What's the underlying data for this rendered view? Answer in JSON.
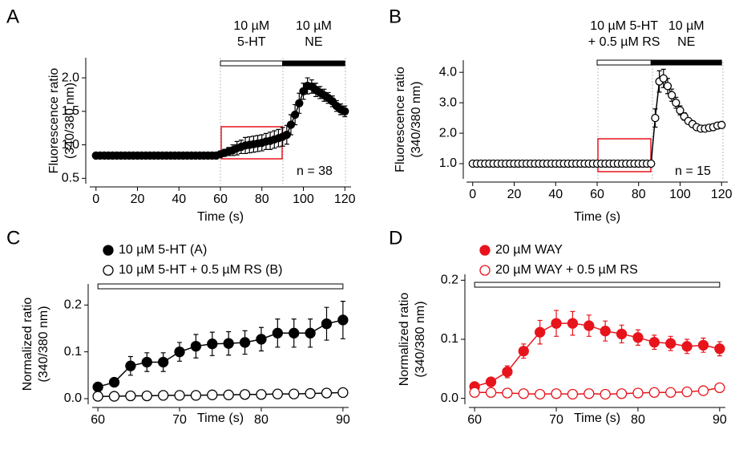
{
  "chart_data": [
    {
      "type": "line",
      "panel": "A",
      "xlabel": "Time (s)",
      "ylabel": [
        "Fluorescence ratio",
        "(340/380 nm)"
      ],
      "xlim": [
        -3,
        123
      ],
      "xticks": [
        0,
        20,
        40,
        60,
        80,
        100,
        120
      ],
      "ylim": [
        0.42,
        2.3
      ],
      "yticks": [
        {
          "value": 0.5,
          "label": "0.5"
        },
        {
          "value": 1,
          "label": "1.0"
        },
        {
          "value": 1.5,
          "label": "1.5"
        },
        {
          "value": 2,
          "label": "2.0"
        }
      ],
      "stimuli": [
        {
          "start": 60,
          "end": 90,
          "color": "#ffffff",
          "label": [
            "10 µM",
            "5-HT"
          ]
        },
        {
          "start": 90,
          "end": 120,
          "color": "#000000",
          "label": [
            "10 µM",
            "NE"
          ]
        }
      ],
      "annotations": [
        "n = 38"
      ],
      "series": [
        {
          "name": null,
          "color": "#000000",
          "filled": true,
          "x": [
            0,
            2,
            4,
            6,
            8,
            10,
            12,
            14,
            16,
            18,
            20,
            22,
            24,
            26,
            28,
            30,
            32,
            34,
            36,
            38,
            40,
            42,
            44,
            46,
            48,
            50,
            52,
            54,
            56,
            58,
            60,
            62,
            64,
            66,
            68,
            70,
            72,
            74,
            76,
            78,
            80,
            82,
            84,
            86,
            88,
            90,
            92,
            94,
            96,
            98,
            100,
            102,
            104,
            106,
            108,
            110,
            112,
            114,
            116,
            118,
            120
          ],
          "values": [
            0.84,
            0.84,
            0.84,
            0.84,
            0.84,
            0.84,
            0.84,
            0.84,
            0.84,
            0.84,
            0.84,
            0.84,
            0.84,
            0.84,
            0.84,
            0.84,
            0.84,
            0.84,
            0.84,
            0.84,
            0.84,
            0.84,
            0.84,
            0.84,
            0.84,
            0.84,
            0.84,
            0.84,
            0.84,
            0.84,
            0.86,
            0.88,
            0.9,
            0.92,
            0.95,
            0.97,
            0.99,
            1.0,
            1.01,
            1.02,
            1.03,
            1.05,
            1.06,
            1.08,
            1.1,
            1.12,
            1.15,
            1.3,
            1.45,
            1.62,
            1.8,
            1.88,
            1.87,
            1.82,
            1.78,
            1.74,
            1.7,
            1.65,
            1.58,
            1.53,
            1.5
          ],
          "errors": [
            0.02,
            0.02,
            0.02,
            0.02,
            0.02,
            0.02,
            0.02,
            0.02,
            0.02,
            0.02,
            0.02,
            0.02,
            0.02,
            0.02,
            0.02,
            0.02,
            0.02,
            0.02,
            0.02,
            0.02,
            0.02,
            0.02,
            0.02,
            0.02,
            0.02,
            0.02,
            0.02,
            0.02,
            0.02,
            0.02,
            0.04,
            0.05,
            0.06,
            0.08,
            0.1,
            0.1,
            0.12,
            0.12,
            0.12,
            0.12,
            0.12,
            0.12,
            0.13,
            0.13,
            0.13,
            0.14,
            0.14,
            0.15,
            0.15,
            0.15,
            0.12,
            0.12,
            0.1,
            0.1,
            0.09,
            0.09,
            0.08,
            0.08,
            0.08,
            0.08,
            0.08
          ]
        }
      ]
    },
    {
      "type": "line",
      "panel": "B",
      "xlabel": "Time (s)",
      "ylabel": [
        "Fluorescence ratio",
        "(340/380 nm)"
      ],
      "xlim": [
        -3,
        123
      ],
      "xticks": [
        0,
        20,
        40,
        60,
        80,
        100,
        120
      ],
      "ylim": [
        0.5,
        4.4
      ],
      "yticks": [
        {
          "value": 1,
          "label": "1.0"
        },
        {
          "value": 2,
          "label": "2.0"
        },
        {
          "value": 3,
          "label": "3.0"
        },
        {
          "value": 4,
          "label": "4.0"
        }
      ],
      "stimuli": [
        {
          "start": 60,
          "end": 86,
          "color": "#ffffff",
          "label": [
            "10 µM 5-HT",
            "+ 0.5 µM RS"
          ]
        },
        {
          "start": 86,
          "end": 120,
          "color": "#000000",
          "label": [
            "10 µM",
            "NE"
          ]
        }
      ],
      "annotations": [
        "n = 15"
      ],
      "series": [
        {
          "name": null,
          "color": "#000000",
          "filled": false,
          "x": [
            0,
            2,
            4,
            6,
            8,
            10,
            12,
            14,
            16,
            18,
            20,
            22,
            24,
            26,
            28,
            30,
            32,
            34,
            36,
            38,
            40,
            42,
            44,
            46,
            48,
            50,
            52,
            54,
            56,
            58,
            60,
            62,
            64,
            66,
            68,
            70,
            72,
            74,
            76,
            78,
            80,
            82,
            84,
            86,
            88,
            90,
            92,
            94,
            96,
            98,
            100,
            102,
            104,
            106,
            108,
            110,
            112,
            114,
            116,
            118,
            120
          ],
          "values": [
            1.0,
            1.0,
            1.0,
            1.0,
            1.0,
            1.0,
            1.0,
            1.0,
            1.0,
            1.0,
            1.0,
            1.0,
            1.0,
            1.0,
            1.0,
            1.0,
            1.0,
            1.0,
            1.0,
            1.0,
            1.0,
            1.0,
            1.0,
            1.0,
            1.0,
            1.0,
            1.0,
            1.0,
            1.0,
            1.0,
            1.0,
            1.0,
            1.0,
            1.0,
            1.0,
            1.0,
            1.0,
            1.0,
            1.0,
            1.0,
            1.0,
            1.0,
            1.0,
            1.0,
            2.5,
            3.7,
            3.8,
            3.55,
            3.25,
            3.0,
            2.75,
            2.55,
            2.4,
            2.3,
            2.2,
            2.15,
            2.15,
            2.18,
            2.2,
            2.25,
            2.27
          ],
          "errors": [
            0.03,
            0.03,
            0.03,
            0.03,
            0.03,
            0.03,
            0.03,
            0.03,
            0.03,
            0.03,
            0.03,
            0.03,
            0.03,
            0.03,
            0.03,
            0.03,
            0.03,
            0.03,
            0.03,
            0.03,
            0.03,
            0.03,
            0.03,
            0.03,
            0.03,
            0.03,
            0.03,
            0.03,
            0.03,
            0.03,
            0.03,
            0.03,
            0.03,
            0.03,
            0.03,
            0.03,
            0.03,
            0.03,
            0.03,
            0.03,
            0.03,
            0.03,
            0.03,
            0.03,
            0.3,
            0.35,
            0.3,
            0.25,
            0.2,
            0.18,
            0.15,
            0.12,
            0.1,
            0.1,
            0.08,
            0.08,
            0.08,
            0.08,
            0.08,
            0.1,
            0.1
          ]
        }
      ]
    },
    {
      "type": "line",
      "panel": "C",
      "xlabel": "Time (s)",
      "ylabel": [
        "Normalized ratio",
        "(340/380 nm)"
      ],
      "xlim": [
        59.3,
        90.7
      ],
      "xticks": [
        60,
        70,
        80,
        90
      ],
      "ylim": [
        -0.012,
        0.245
      ],
      "yticks": [
        {
          "value": 0,
          "label": "0.0"
        },
        0.1,
        0.2
      ],
      "stimuli": [
        {
          "start": 60,
          "end": 90,
          "color": "#ffffff",
          "label": []
        }
      ],
      "annotations": [],
      "series": [
        {
          "name": "10 µM 5-HT (A)",
          "color": "#000000",
          "filled": true,
          "x": [
            60,
            62,
            64,
            66,
            68,
            70,
            72,
            74,
            76,
            78,
            80,
            82,
            84,
            86,
            88,
            90
          ],
          "values": [
            0.025,
            0.035,
            0.07,
            0.078,
            0.078,
            0.1,
            0.112,
            0.117,
            0.118,
            0.12,
            0.127,
            0.14,
            0.14,
            0.14,
            0.16,
            0.168
          ],
          "errors": [
            0.005,
            0.008,
            0.02,
            0.02,
            0.02,
            0.02,
            0.025,
            0.025,
            0.025,
            0.025,
            0.025,
            0.03,
            0.03,
            0.03,
            0.035,
            0.04
          ]
        },
        {
          "name": "10 µM 5-HT + 0.5 µM RS (B)",
          "color": "#000000",
          "filled": false,
          "x": [
            60,
            62,
            64,
            66,
            68,
            70,
            72,
            74,
            76,
            78,
            80,
            82,
            84,
            86,
            88,
            90
          ],
          "values": [
            0.005,
            0.005,
            0.006,
            0.006,
            0.007,
            0.007,
            0.007,
            0.008,
            0.008,
            0.009,
            0.009,
            0.01,
            0.01,
            0.011,
            0.012,
            0.013
          ],
          "errors": [
            0.003,
            0.003,
            0.003,
            0.003,
            0.003,
            0.003,
            0.003,
            0.003,
            0.003,
            0.003,
            0.003,
            0.003,
            0.003,
            0.003,
            0.003,
            0.003
          ]
        }
      ]
    },
    {
      "type": "line",
      "panel": "D",
      "xlabel": "Time (s)",
      "ylabel": [
        "Normalized ratio",
        "(340/380 nm)"
      ],
      "xlim": [
        59.3,
        90.7
      ],
      "xticks": [
        60,
        70,
        80,
        90
      ],
      "ylim": [
        -0.01,
        0.21
      ],
      "yticks": [
        {
          "value": 0,
          "label": "0.0"
        },
        0.1,
        0.2
      ],
      "stimuli": [
        {
          "start": 60,
          "end": 90,
          "color": "#ffffff",
          "label": []
        }
      ],
      "annotations": [],
      "series": [
        {
          "name": "20 µM WAY",
          "color": "#e8141c",
          "filled": true,
          "x": [
            60,
            62,
            64,
            66,
            68,
            70,
            72,
            74,
            76,
            78,
            80,
            82,
            84,
            86,
            88,
            90
          ],
          "values": [
            0.02,
            0.028,
            0.045,
            0.08,
            0.112,
            0.127,
            0.127,
            0.123,
            0.114,
            0.109,
            0.103,
            0.095,
            0.093,
            0.088,
            0.09,
            0.084
          ],
          "errors": [
            0.005,
            0.007,
            0.01,
            0.012,
            0.02,
            0.022,
            0.02,
            0.018,
            0.017,
            0.015,
            0.013,
            0.012,
            0.012,
            0.012,
            0.012,
            0.012
          ]
        },
        {
          "name": "20 µM WAY + 0.5 µM RS",
          "color": "#e8141c",
          "filled": false,
          "x": [
            60,
            62,
            64,
            66,
            68,
            70,
            72,
            74,
            76,
            78,
            80,
            82,
            84,
            86,
            88,
            90
          ],
          "values": [
            0.01,
            0.01,
            0.009,
            0.008,
            0.007,
            0.008,
            0.007,
            0.008,
            0.007,
            0.008,
            0.009,
            0.01,
            0.01,
            0.011,
            0.013,
            0.018
          ],
          "errors": [
            0.002,
            0.002,
            0.002,
            0.002,
            0.002,
            0.002,
            0.002,
            0.002,
            0.002,
            0.002,
            0.002,
            0.002,
            0.002,
            0.002,
            0.002,
            0.002
          ]
        }
      ]
    }
  ]
}
